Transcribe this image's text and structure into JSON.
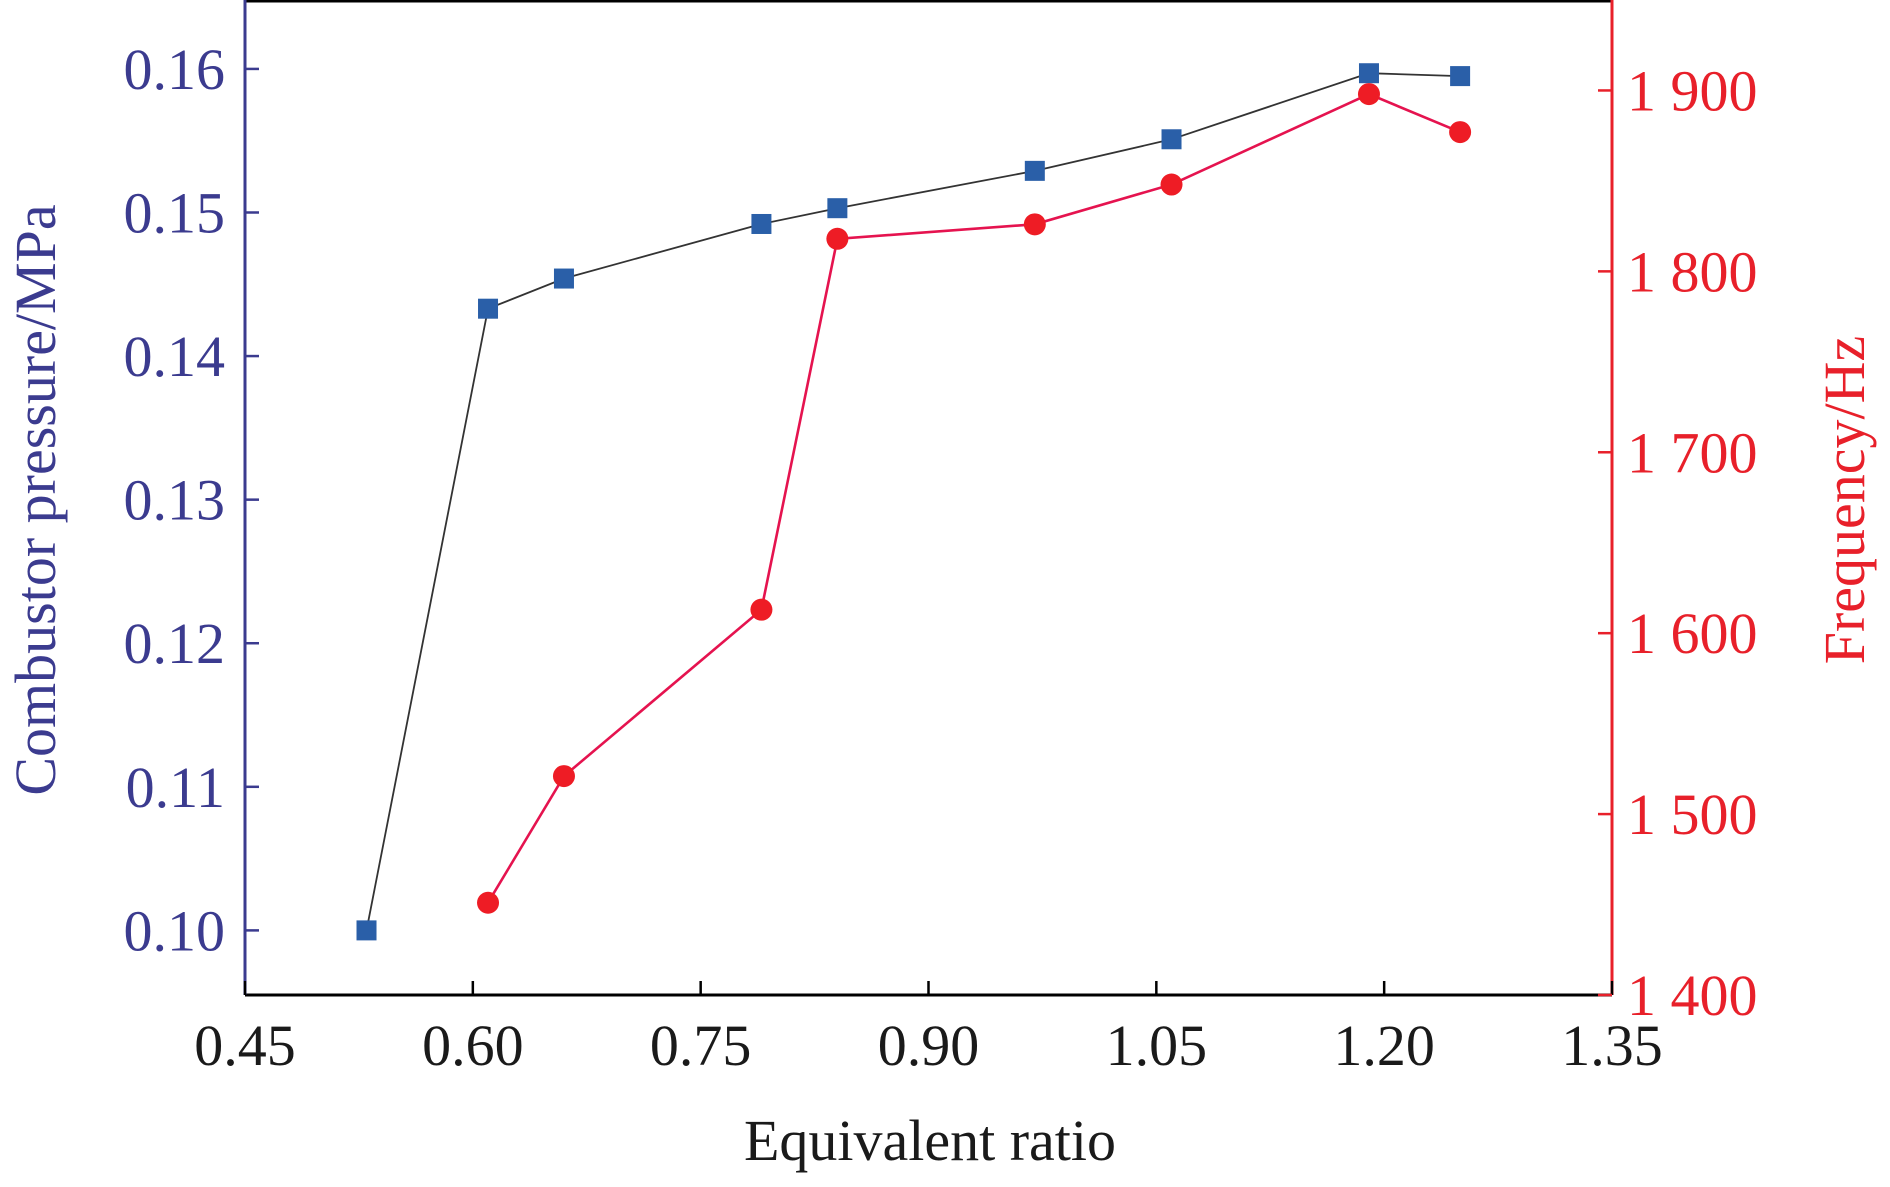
{
  "chart_data": {
    "type": "line",
    "xlabel": "Equivalent ratio",
    "ylabel_left": "Combustor pressure/MPa",
    "ylabel_right": "Frequency/Hz",
    "xlim": [
      0.45,
      1.35
    ],
    "ylim_left": [
      0.0955,
      0.1648
    ],
    "ylim_right": [
      1400,
      1950
    ],
    "x_ticks": [
      "0.45",
      "0.60",
      "0.75",
      "0.90",
      "1.05",
      "1.20",
      "1.35"
    ],
    "y_left_ticks": [
      "0.10",
      "0.11",
      "0.12",
      "0.13",
      "0.14",
      "0.15",
      "0.16"
    ],
    "y_right_ticks": [
      "1 400",
      "1 500",
      "1 600",
      "1 700",
      "1 800",
      "1 900"
    ],
    "grid": false,
    "colors": {
      "left_axis": "#3b3b8f",
      "right_axis": "#e8202a",
      "pressure_line": "#333333",
      "pressure_marker": "#2a5fa8",
      "frequency_line": "#e5134f",
      "frequency_marker": "#ee1c25",
      "frame": "#000000"
    },
    "series": [
      {
        "axis": "left",
        "marker": "square",
        "x": [
          0.53,
          0.61,
          0.66,
          0.79,
          0.84,
          0.97,
          1.06,
          1.19,
          1.25
        ],
        "y": [
          0.1,
          0.1433,
          0.1454,
          0.1492,
          0.1503,
          0.1529,
          0.1551,
          0.1597,
          0.1595
        ]
      },
      {
        "axis": "right",
        "marker": "circle",
        "x": [
          0.61,
          0.66,
          0.79,
          0.84,
          0.97,
          1.06,
          1.19,
          1.25
        ],
        "y": [
          1451,
          1521,
          1613,
          1818,
          1826,
          1848,
          1898,
          1877
        ]
      }
    ]
  }
}
